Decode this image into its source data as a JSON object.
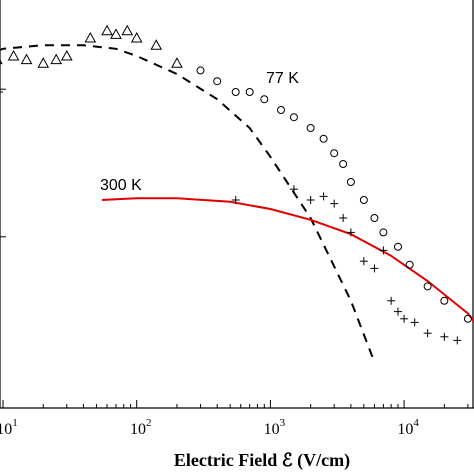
{
  "chart_data": {
    "type": "scatter",
    "title": "",
    "xlabel": "Electric Field ℰ (V/cm)",
    "ylabel": "",
    "xscale": "log",
    "xlim": [
      7,
      55000
    ],
    "ylim_visible": "partial (upper left cropped)",
    "x_tick_labels": [
      {
        "x": 10,
        "base": "10",
        "exp": "1"
      },
      {
        "x": 100,
        "base": "10",
        "exp": "2"
      },
      {
        "x": 1000,
        "base": "10",
        "exp": "3"
      },
      {
        "x": 10000,
        "base": "10",
        "exp": "4"
      }
    ],
    "grid": false,
    "legend": "none",
    "colors": {
      "curve_300K": "#e00000",
      "curve_77K": "#000000",
      "markers": "#000000"
    },
    "annotations": [
      {
        "text": "77 K",
        "near_series": "77 K"
      },
      {
        "text": "300 K",
        "near_series": "300 K"
      }
    ],
    "series": [
      {
        "name": "77 K",
        "kind": "dashed-line",
        "x": [
          7,
          10,
          20,
          40,
          70,
          100,
          200,
          400,
          700,
          1000,
          2000,
          4000,
          6000
        ],
        "y": [
          0.9,
          0.92,
          0.93,
          0.93,
          0.92,
          0.9,
          0.85,
          0.78,
          0.7,
          0.62,
          0.45,
          0.22,
          0.05
        ]
      },
      {
        "name": "300 K",
        "kind": "solid-line",
        "x": [
          55,
          100,
          200,
          500,
          1000,
          2000,
          4000,
          8000,
          15000,
          30000,
          45000
        ],
        "y": [
          0.5,
          0.505,
          0.505,
          0.495,
          0.475,
          0.445,
          0.405,
          0.345,
          0.275,
          0.185,
          0.1
        ]
      },
      {
        "kind": "triangle-markers",
        "x": [
          7,
          9,
          12,
          15,
          20,
          25,
          30,
          45,
          60,
          70,
          85,
          100,
          140,
          200
        ],
        "y": [
          0.88,
          0.89,
          0.9,
          0.89,
          0.88,
          0.89,
          0.9,
          0.95,
          0.97,
          0.96,
          0.97,
          0.95,
          0.93,
          0.88
        ]
      },
      {
        "kind": "circle-markers",
        "x": [
          300,
          400,
          550,
          700,
          900,
          1200,
          1500,
          2000,
          2500,
          3000,
          3500,
          4000,
          5000,
          6000,
          7000,
          9000,
          11000,
          15000,
          20000,
          30000,
          40000
        ],
        "y": [
          0.86,
          0.83,
          0.8,
          0.8,
          0.78,
          0.75,
          0.73,
          0.7,
          0.67,
          0.63,
          0.6,
          0.55,
          0.5,
          0.45,
          0.41,
          0.37,
          0.32,
          0.26,
          0.22,
          0.17,
          0.1
        ]
      },
      {
        "kind": "plus-markers",
        "x": [
          550,
          1500,
          2000,
          2500,
          3000,
          3500,
          4000,
          5000,
          6000,
          7000,
          8000,
          9000,
          10000,
          12000,
          15000,
          20000,
          25000
        ],
        "y": [
          0.5,
          0.53,
          0.5,
          0.51,
          0.49,
          0.45,
          0.41,
          0.33,
          0.31,
          0.36,
          0.22,
          0.19,
          0.17,
          0.16,
          0.13,
          0.12,
          0.11
        ]
      }
    ]
  }
}
